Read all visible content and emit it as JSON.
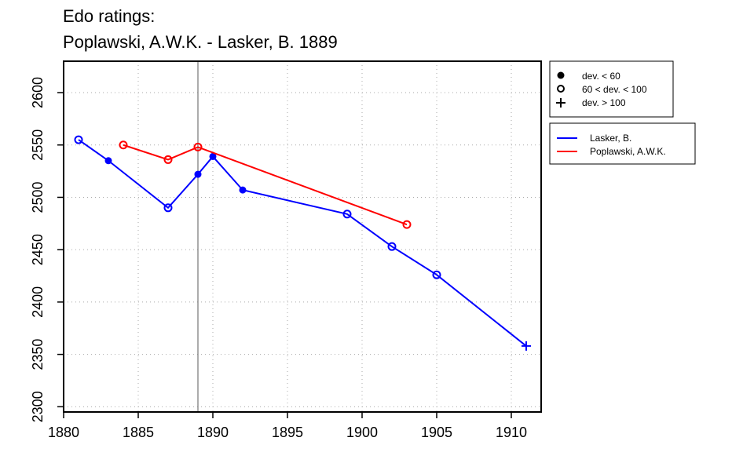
{
  "chart_data": {
    "type": "line",
    "title_lines": [
      "Edo ratings:",
      "Poplawski, A.W.K. - Lasker, B. 1889"
    ],
    "xlabel": "",
    "ylabel": "",
    "xlim": [
      1880,
      1912
    ],
    "ylim": [
      2295,
      2630
    ],
    "x_ticks": [
      1880,
      1885,
      1890,
      1895,
      1900,
      1905,
      1910
    ],
    "y_ticks": [
      2300,
      2350,
      2400,
      2450,
      2500,
      2550,
      2600
    ],
    "grid": true,
    "reference_line_x": 1889,
    "legend_position": "outside-right",
    "marker_legend": [
      {
        "label": "dev. < 60",
        "marker": "filled-circle"
      },
      {
        "label": "60 < dev. < 100",
        "marker": "open-circle"
      },
      {
        "label": "dev. > 100",
        "marker": "plus"
      }
    ],
    "series": [
      {
        "name": "Lasker, B.",
        "color": "#0000ff",
        "points": [
          {
            "x": 1881,
            "y": 2555,
            "marker": "open-circle"
          },
          {
            "x": 1883,
            "y": 2535,
            "marker": "filled-circle"
          },
          {
            "x": 1887,
            "y": 2490,
            "marker": "open-circle"
          },
          {
            "x": 1889,
            "y": 2522,
            "marker": "filled-circle"
          },
          {
            "x": 1890,
            "y": 2539,
            "marker": "filled-circle"
          },
          {
            "x": 1892,
            "y": 2507,
            "marker": "filled-circle"
          },
          {
            "x": 1899,
            "y": 2484,
            "marker": "open-circle"
          },
          {
            "x": 1902,
            "y": 2453,
            "marker": "open-circle"
          },
          {
            "x": 1905,
            "y": 2426,
            "marker": "open-circle"
          },
          {
            "x": 1911,
            "y": 2358,
            "marker": "plus"
          }
        ]
      },
      {
        "name": "Poplawski, A.W.K.",
        "color": "#ff0000",
        "points": [
          {
            "x": 1884,
            "y": 2550,
            "marker": "open-circle"
          },
          {
            "x": 1887,
            "y": 2536,
            "marker": "open-circle"
          },
          {
            "x": 1889,
            "y": 2548,
            "marker": "open-circle"
          },
          {
            "x": 1903,
            "y": 2474,
            "marker": "open-circle"
          }
        ]
      }
    ]
  }
}
